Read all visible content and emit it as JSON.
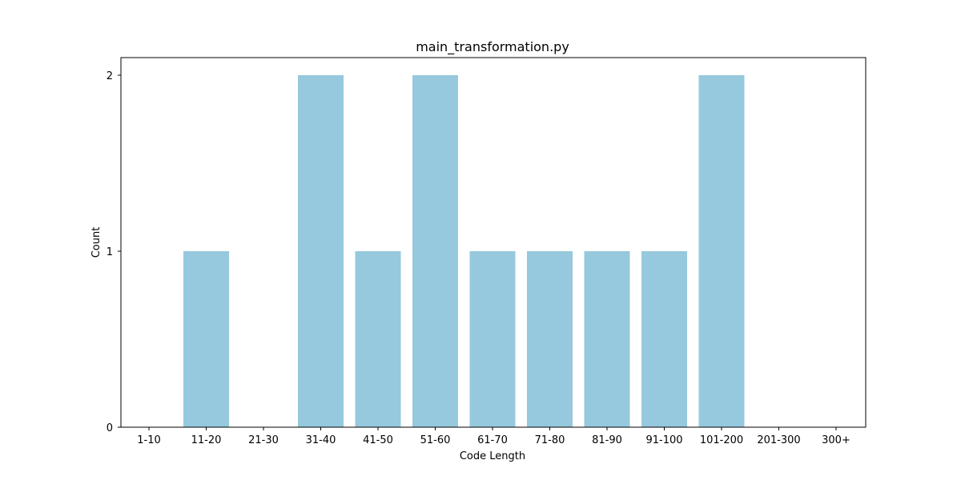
{
  "chart_data": {
    "type": "bar",
    "title": "main_transformation.py",
    "xlabel": "Code Length",
    "ylabel": "Count",
    "categories": [
      "1-10",
      "11-20",
      "21-30",
      "31-40",
      "41-50",
      "51-60",
      "61-70",
      "71-80",
      "81-90",
      "91-100",
      "101-200",
      "201-300",
      "300+"
    ],
    "values": [
      0,
      1,
      0,
      2,
      1,
      2,
      1,
      1,
      1,
      1,
      2,
      0,
      0
    ],
    "ylim": [
      0,
      2.1
    ],
    "yticks": [
      "0",
      "1",
      "2"
    ],
    "grid": false,
    "legend": "none",
    "bar_color": "#96c9dd"
  }
}
